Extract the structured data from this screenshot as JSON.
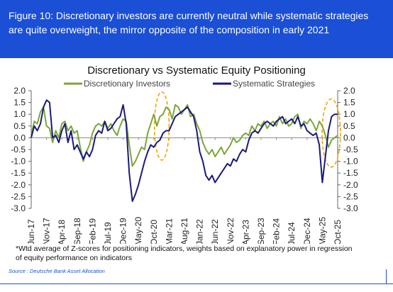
{
  "header": {
    "text": "Figure 10: Discretionary investors are currently neutral while systematic strategies are quite overweight, the mirror opposite of the composition in early 2021"
  },
  "chart_data": {
    "type": "line",
    "title": "Discretionary vs Systematic Equity Positioning",
    "xlabel": "",
    "ylabel": "",
    "ylim": [
      -3.0,
      2.0
    ],
    "yticks_left": [
      "2.0",
      "1.5",
      "1.0",
      "0.5",
      "0.0",
      "-0.5",
      "-1.0",
      "-1.5",
      "-2.0",
      "-2.5",
      "-3.0"
    ],
    "yticks_right": [
      "2.0",
      "1.5",
      "1.0",
      "0.5",
      "0.0",
      "-0.5",
      "-1.0",
      "-1.5",
      "-2.0",
      "-2.5",
      "-3.0"
    ],
    "yticks_values": [
      2.0,
      1.5,
      1.0,
      0.5,
      0.0,
      -0.5,
      -1.0,
      -1.5,
      -2.0,
      -2.5,
      -3.0
    ],
    "x_tick_labels": [
      "Jun-17",
      "Nov-17",
      "Apr-18",
      "Sep-18",
      "Feb-19",
      "Jul-19",
      "Dec-19",
      "May-20",
      "Oct-20",
      "Mar-21",
      "Aug-21",
      "Jan-22",
      "Jun-22",
      "Nov-22",
      "Apr-23",
      "Sep-23",
      "Feb-24",
      "Jul-24",
      "Dec-24",
      "May-25",
      "Oct-25"
    ],
    "x_tick_values": [
      0,
      5,
      10,
      15,
      20,
      25,
      30,
      35,
      40,
      45,
      50,
      55,
      60,
      65,
      70,
      75,
      80,
      85,
      90,
      95,
      100
    ],
    "legend_position": "top",
    "grid": false,
    "series": [
      {
        "name": "Discretionary Investors",
        "color": "#7da53a",
        "points": [
          [
            0,
            0.1
          ],
          [
            1,
            0.7
          ],
          [
            2,
            0.6
          ],
          [
            3,
            1.1
          ],
          [
            4,
            1.3
          ],
          [
            5,
            0.5
          ],
          [
            6,
            0.4
          ],
          [
            7,
            -0.2
          ],
          [
            8,
            0.3
          ],
          [
            9,
            0.0
          ],
          [
            10,
            0.6
          ],
          [
            11,
            0.7
          ],
          [
            12,
            0.3
          ],
          [
            13,
            0.5
          ],
          [
            14,
            0.2
          ],
          [
            15,
            0.3
          ],
          [
            16,
            -0.4
          ],
          [
            17,
            -1.0
          ],
          [
            18,
            -0.6
          ],
          [
            19,
            -0.3
          ],
          [
            20,
            0.2
          ],
          [
            21,
            0.5
          ],
          [
            22,
            0.6
          ],
          [
            23,
            0.5
          ],
          [
            24,
            0.7
          ],
          [
            25,
            0.4
          ],
          [
            26,
            0.6
          ],
          [
            27,
            0.3
          ],
          [
            28,
            0.1
          ],
          [
            29,
            0.5
          ],
          [
            30,
            0.8
          ],
          [
            31,
            0.7
          ],
          [
            32,
            -0.3
          ],
          [
            33,
            -1.2
          ],
          [
            34,
            -1.0
          ],
          [
            35,
            -0.7
          ],
          [
            36,
            -0.4
          ],
          [
            37,
            -0.5
          ],
          [
            38,
            0.2
          ],
          [
            39,
            0.6
          ],
          [
            40,
            1.0
          ],
          [
            41,
            0.5
          ],
          [
            42,
            0.9
          ],
          [
            43,
            1.0
          ],
          [
            44,
            1.3
          ],
          [
            45,
            1.2
          ],
          [
            46,
            0.8
          ],
          [
            47,
            1.4
          ],
          [
            48,
            1.3
          ],
          [
            49,
            1.0
          ],
          [
            50,
            1.2
          ],
          [
            51,
            1.4
          ],
          [
            52,
            0.9
          ],
          [
            53,
            1.0
          ],
          [
            54,
            0.6
          ],
          [
            55,
            0.3
          ],
          [
            56,
            -0.2
          ],
          [
            57,
            -0.5
          ],
          [
            58,
            -0.7
          ],
          [
            59,
            -0.5
          ],
          [
            60,
            -0.8
          ],
          [
            61,
            -0.6
          ],
          [
            62,
            -0.4
          ],
          [
            63,
            -0.7
          ],
          [
            64,
            -0.5
          ],
          [
            65,
            -0.3
          ],
          [
            66,
            0.0
          ],
          [
            67,
            -0.2
          ],
          [
            68,
            -0.1
          ],
          [
            69,
            0.1
          ],
          [
            70,
            0.2
          ],
          [
            71,
            0.1
          ],
          [
            72,
            0.5
          ],
          [
            73,
            0.3
          ],
          [
            74,
            0.6
          ],
          [
            75,
            0.5
          ],
          [
            76,
            0.7
          ],
          [
            77,
            0.4
          ],
          [
            78,
            0.6
          ],
          [
            79,
            0.7
          ],
          [
            80,
            0.5
          ],
          [
            81,
            0.9
          ],
          [
            82,
            0.6
          ],
          [
            83,
            0.8
          ],
          [
            84,
            0.5
          ],
          [
            85,
            0.6
          ],
          [
            86,
            0.9
          ],
          [
            87,
            1.0
          ],
          [
            88,
            0.4
          ],
          [
            89,
            0.7
          ],
          [
            90,
            0.6
          ],
          [
            91,
            0.8
          ],
          [
            92,
            0.6
          ],
          [
            93,
            0.3
          ],
          [
            94,
            0.7
          ],
          [
            95,
            0.5
          ],
          [
            96,
            0.1
          ],
          [
            97,
            -0.4
          ],
          [
            98,
            -0.1
          ],
          [
            99,
            0.0
          ],
          [
            100,
            0.1
          ]
        ]
      },
      {
        "name": "Systematic Strategies",
        "color": "#1a1a7a",
        "points": [
          [
            0,
            0.0
          ],
          [
            1,
            0.5
          ],
          [
            2,
            0.3
          ],
          [
            3,
            0.6
          ],
          [
            4,
            1.3
          ],
          [
            5,
            1.6
          ],
          [
            6,
            1.5
          ],
          [
            7,
            0.0
          ],
          [
            8,
            0.1
          ],
          [
            9,
            -0.2
          ],
          [
            10,
            0.3
          ],
          [
            11,
            0.6
          ],
          [
            12,
            -0.2
          ],
          [
            13,
            0.3
          ],
          [
            14,
            -0.5
          ],
          [
            15,
            -0.3
          ],
          [
            16,
            -0.6
          ],
          [
            17,
            -0.9
          ],
          [
            18,
            -0.6
          ],
          [
            19,
            -0.8
          ],
          [
            20,
            -0.5
          ],
          [
            21,
            0.1
          ],
          [
            22,
            0.3
          ],
          [
            23,
            0.2
          ],
          [
            24,
            0.7
          ],
          [
            25,
            0.3
          ],
          [
            26,
            0.4
          ],
          [
            27,
            0.6
          ],
          [
            28,
            0.8
          ],
          [
            29,
            0.9
          ],
          [
            30,
            1.4
          ],
          [
            31,
            0.6
          ],
          [
            32,
            -1.5
          ],
          [
            33,
            -2.7
          ],
          [
            34,
            -2.4
          ],
          [
            35,
            -2.0
          ],
          [
            36,
            -1.5
          ],
          [
            37,
            -1.0
          ],
          [
            38,
            -0.6
          ],
          [
            39,
            -0.3
          ],
          [
            40,
            -0.4
          ],
          [
            41,
            -0.2
          ],
          [
            42,
            -0.1
          ],
          [
            43,
            0.2
          ],
          [
            44,
            0.3
          ],
          [
            45,
            0.3
          ],
          [
            46,
            0.6
          ],
          [
            47,
            0.9
          ],
          [
            48,
            1.0
          ],
          [
            49,
            1.1
          ],
          [
            50,
            1.2
          ],
          [
            51,
            1.3
          ],
          [
            52,
            1.1
          ],
          [
            53,
            0.9
          ],
          [
            54,
            0.3
          ],
          [
            55,
            -0.6
          ],
          [
            56,
            -1.0
          ],
          [
            57,
            -1.6
          ],
          [
            58,
            -1.8
          ],
          [
            59,
            -1.6
          ],
          [
            60,
            -1.9
          ],
          [
            61,
            -1.7
          ],
          [
            62,
            -1.5
          ],
          [
            63,
            -1.3
          ],
          [
            64,
            -1.1
          ],
          [
            65,
            -1.2
          ],
          [
            66,
            -0.9
          ],
          [
            67,
            -1.0
          ],
          [
            68,
            -0.7
          ],
          [
            69,
            -0.5
          ],
          [
            70,
            -0.6
          ],
          [
            71,
            -0.1
          ],
          [
            72,
            0.2
          ],
          [
            73,
            0.3
          ],
          [
            74,
            0.2
          ],
          [
            75,
            0.4
          ],
          [
            76,
            0.6
          ],
          [
            77,
            0.7
          ],
          [
            78,
            0.6
          ],
          [
            79,
            0.5
          ],
          [
            80,
            0.7
          ],
          [
            81,
            0.8
          ],
          [
            82,
            0.9
          ],
          [
            83,
            0.6
          ],
          [
            84,
            0.7
          ],
          [
            85,
            0.8
          ],
          [
            86,
            0.6
          ],
          [
            87,
            0.9
          ],
          [
            88,
            0.5
          ],
          [
            89,
            0.6
          ],
          [
            90,
            0.3
          ],
          [
            91,
            0.2
          ],
          [
            92,
            0.1
          ],
          [
            93,
            0.2
          ],
          [
            94,
            -0.3
          ],
          [
            95,
            -1.9
          ],
          [
            96,
            -0.8
          ],
          [
            97,
            0.3
          ],
          [
            98,
            0.9
          ],
          [
            99,
            1.0
          ],
          [
            100,
            1.0
          ]
        ]
      }
    ],
    "highlights": [
      {
        "shape": "ellipse",
        "color": "#f0a500",
        "x_center": 42.6,
        "y_center": 0.5,
        "x_half": 2.4,
        "y_half": 1.45
      },
      {
        "shape": "ellipse",
        "color": "#f0a500",
        "x_center": 97.9,
        "y_center": 0.2,
        "x_half": 3.0,
        "y_half": 1.45
      }
    ]
  },
  "footnote": "*Wtd average of Z-scores for positioning indicators, weights based on explanatory power in regression of equity performance on indicators",
  "source": "Source : Deutsche Bank Asset Allocation"
}
